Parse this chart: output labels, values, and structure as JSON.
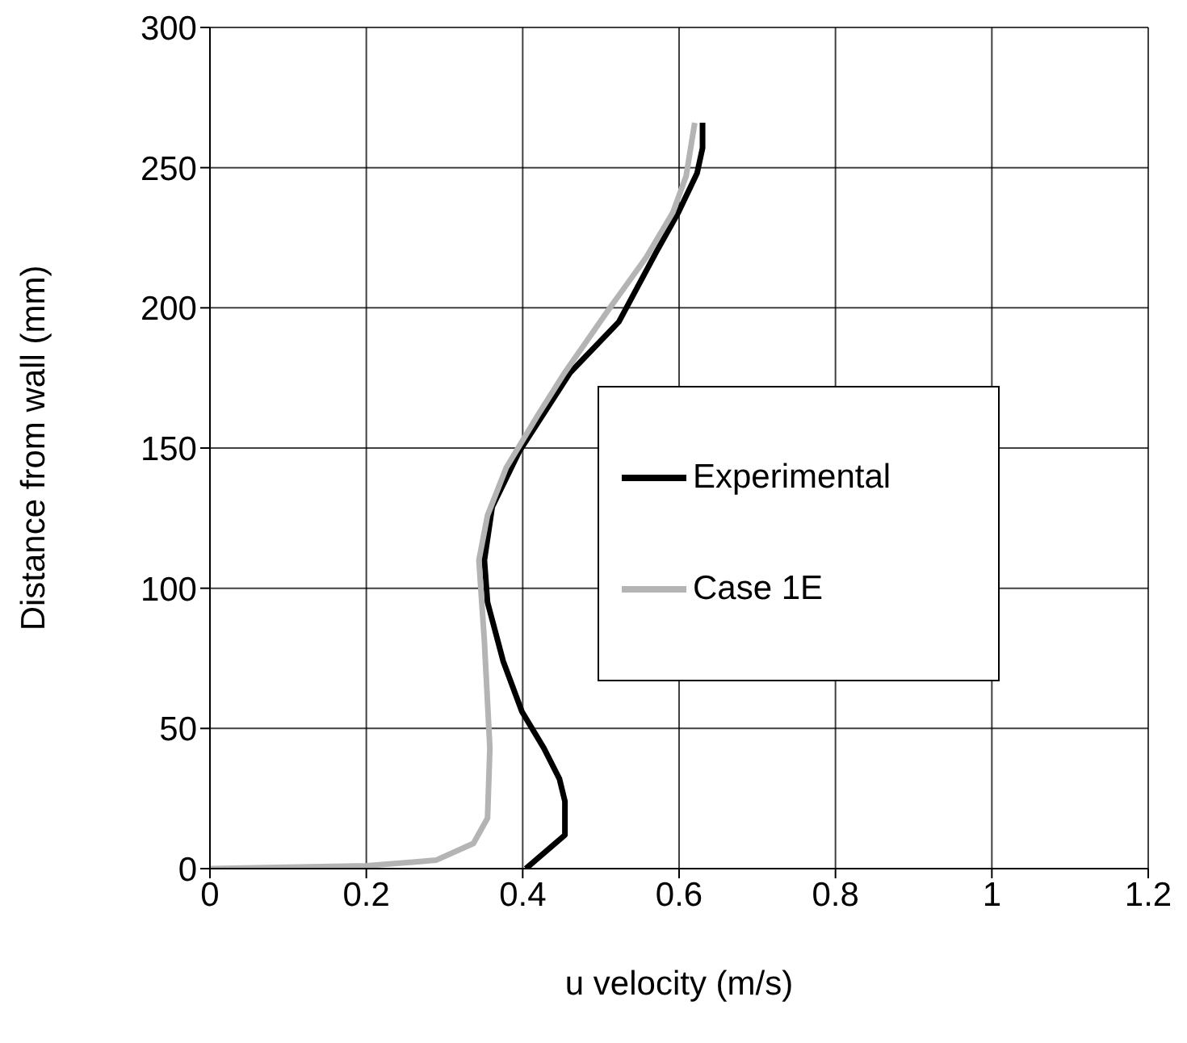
{
  "chart_data": {
    "type": "line",
    "xlabel": "u velocity (m/s)",
    "ylabel": "Distance from wall (mm)",
    "xlim": [
      0,
      1.2
    ],
    "xticks": [
      0,
      0.2,
      0.4,
      0.6,
      0.8,
      1,
      1.2
    ],
    "ylim": [
      0,
      300
    ],
    "yticks": [
      0,
      50,
      100,
      150,
      200,
      250,
      300
    ],
    "grid": true,
    "legend": "right",
    "marker": "none",
    "line_style": "solid",
    "series": [
      {
        "name": "Experimental",
        "color": "#000000",
        "x": [
          0.404,
          0.454,
          0.454,
          0.447,
          0.427,
          0.399,
          0.375,
          0.355,
          0.351,
          0.361,
          0.396,
          0.461,
          0.523,
          0.571,
          0.599,
          0.623,
          0.63,
          0.63
        ],
        "values": [
          0,
          12,
          24,
          32,
          43,
          56,
          74,
          95,
          110,
          129,
          149,
          177,
          195,
          220,
          234,
          248,
          257,
          266
        ]
      },
      {
        "name": "Case 1E",
        "color": "#b4b4b4",
        "x": [
          0,
          0.2,
          0.289,
          0.337,
          0.355,
          0.358,
          0.351,
          0.344,
          0.355,
          0.379,
          0.42,
          0.454,
          0.509,
          0.558,
          0.592,
          0.609,
          0.62
        ],
        "values": [
          0,
          1,
          3,
          9,
          18,
          43,
          81,
          110,
          126,
          143,
          162,
          177,
          199,
          218,
          234,
          247,
          266
        ]
      }
    ]
  }
}
